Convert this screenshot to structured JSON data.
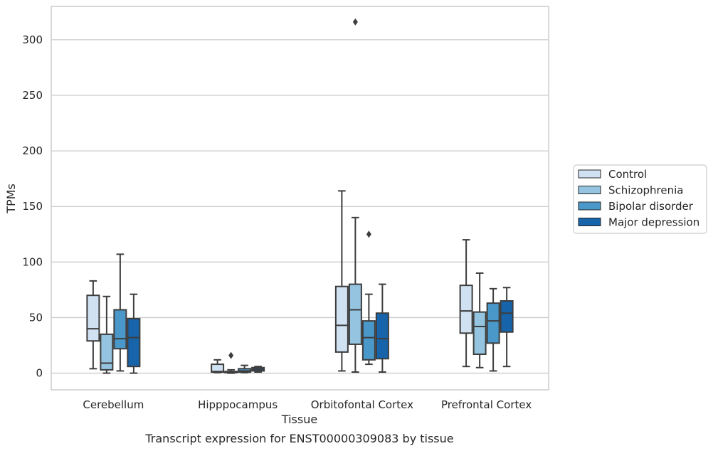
{
  "caption": "Transcript expression for ENST00000309083 by tissue",
  "colors": {
    "Control": "#d0e1f2",
    "Schizophrenia": "#94c4df",
    "Bipolar disorder": "#4a98c9",
    "Major depression": "#1764ab",
    "line": "#3d3d3d",
    "grid": "#cccccc",
    "frame": "#cccccc"
  },
  "chart_data": {
    "type": "box",
    "xlabel": "Tissue",
    "ylabel": "TPMs",
    "ylim": [
      -15,
      330
    ],
    "yticks": [
      0,
      50,
      100,
      150,
      200,
      250,
      300
    ],
    "grid": "horizontal",
    "legend_position": "right-center",
    "categories": [
      "Cerebellum",
      "Hipppocampus",
      "Orbitofontal Cortex",
      "Prefrontal Cortex"
    ],
    "series": [
      {
        "name": "Control",
        "boxes": [
          {
            "whislo": 4,
            "q1": 29,
            "med": 40,
            "q3": 70,
            "whishi": 83,
            "fliers": []
          },
          {
            "whislo": 0.5,
            "q1": 1,
            "med": 1.5,
            "q3": 8,
            "whishi": 12,
            "fliers": []
          },
          {
            "whislo": 2,
            "q1": 19,
            "med": 43,
            "q3": 78,
            "whishi": 164,
            "fliers": []
          },
          {
            "whislo": 6,
            "q1": 36,
            "med": 56,
            "q3": 79,
            "whishi": 120,
            "fliers": []
          }
        ]
      },
      {
        "name": "Schizophrenia",
        "boxes": [
          {
            "whislo": 0,
            "q1": 3,
            "med": 9,
            "q3": 35,
            "whishi": 69,
            "fliers": []
          },
          {
            "whislo": 0,
            "q1": 0.5,
            "med": 1,
            "q3": 1.5,
            "whishi": 3,
            "fliers": [
              16
            ]
          },
          {
            "whislo": 1,
            "q1": 26,
            "med": 57,
            "q3": 80,
            "whishi": 140,
            "fliers": [
              316
            ]
          },
          {
            "whislo": 5,
            "q1": 17,
            "med": 42,
            "q3": 55,
            "whishi": 90,
            "fliers": []
          }
        ]
      },
      {
        "name": "Bipolar disorder",
        "boxes": [
          {
            "whislo": 2,
            "q1": 22,
            "med": 31,
            "q3": 57,
            "whishi": 107,
            "fliers": []
          },
          {
            "whislo": 0.5,
            "q1": 1,
            "med": 2,
            "q3": 4,
            "whishi": 7,
            "fliers": []
          },
          {
            "whislo": 8,
            "q1": 12,
            "med": 32,
            "q3": 47,
            "whishi": 71,
            "fliers": [
              125
            ]
          },
          {
            "whislo": 2,
            "q1": 27,
            "med": 47,
            "q3": 63,
            "whishi": 76,
            "fliers": []
          }
        ]
      },
      {
        "name": "Major depression",
        "boxes": [
          {
            "whislo": 0,
            "q1": 6,
            "med": 32,
            "q3": 49,
            "whishi": 71,
            "fliers": []
          },
          {
            "whislo": 1,
            "q1": 2,
            "med": 3.5,
            "q3": 5,
            "whishi": 6,
            "fliers": []
          },
          {
            "whislo": 1,
            "q1": 13,
            "med": 31,
            "q3": 54,
            "whishi": 80,
            "fliers": []
          },
          {
            "whislo": 6,
            "q1": 37,
            "med": 54,
            "q3": 65,
            "whishi": 77,
            "fliers": []
          }
        ]
      }
    ]
  }
}
